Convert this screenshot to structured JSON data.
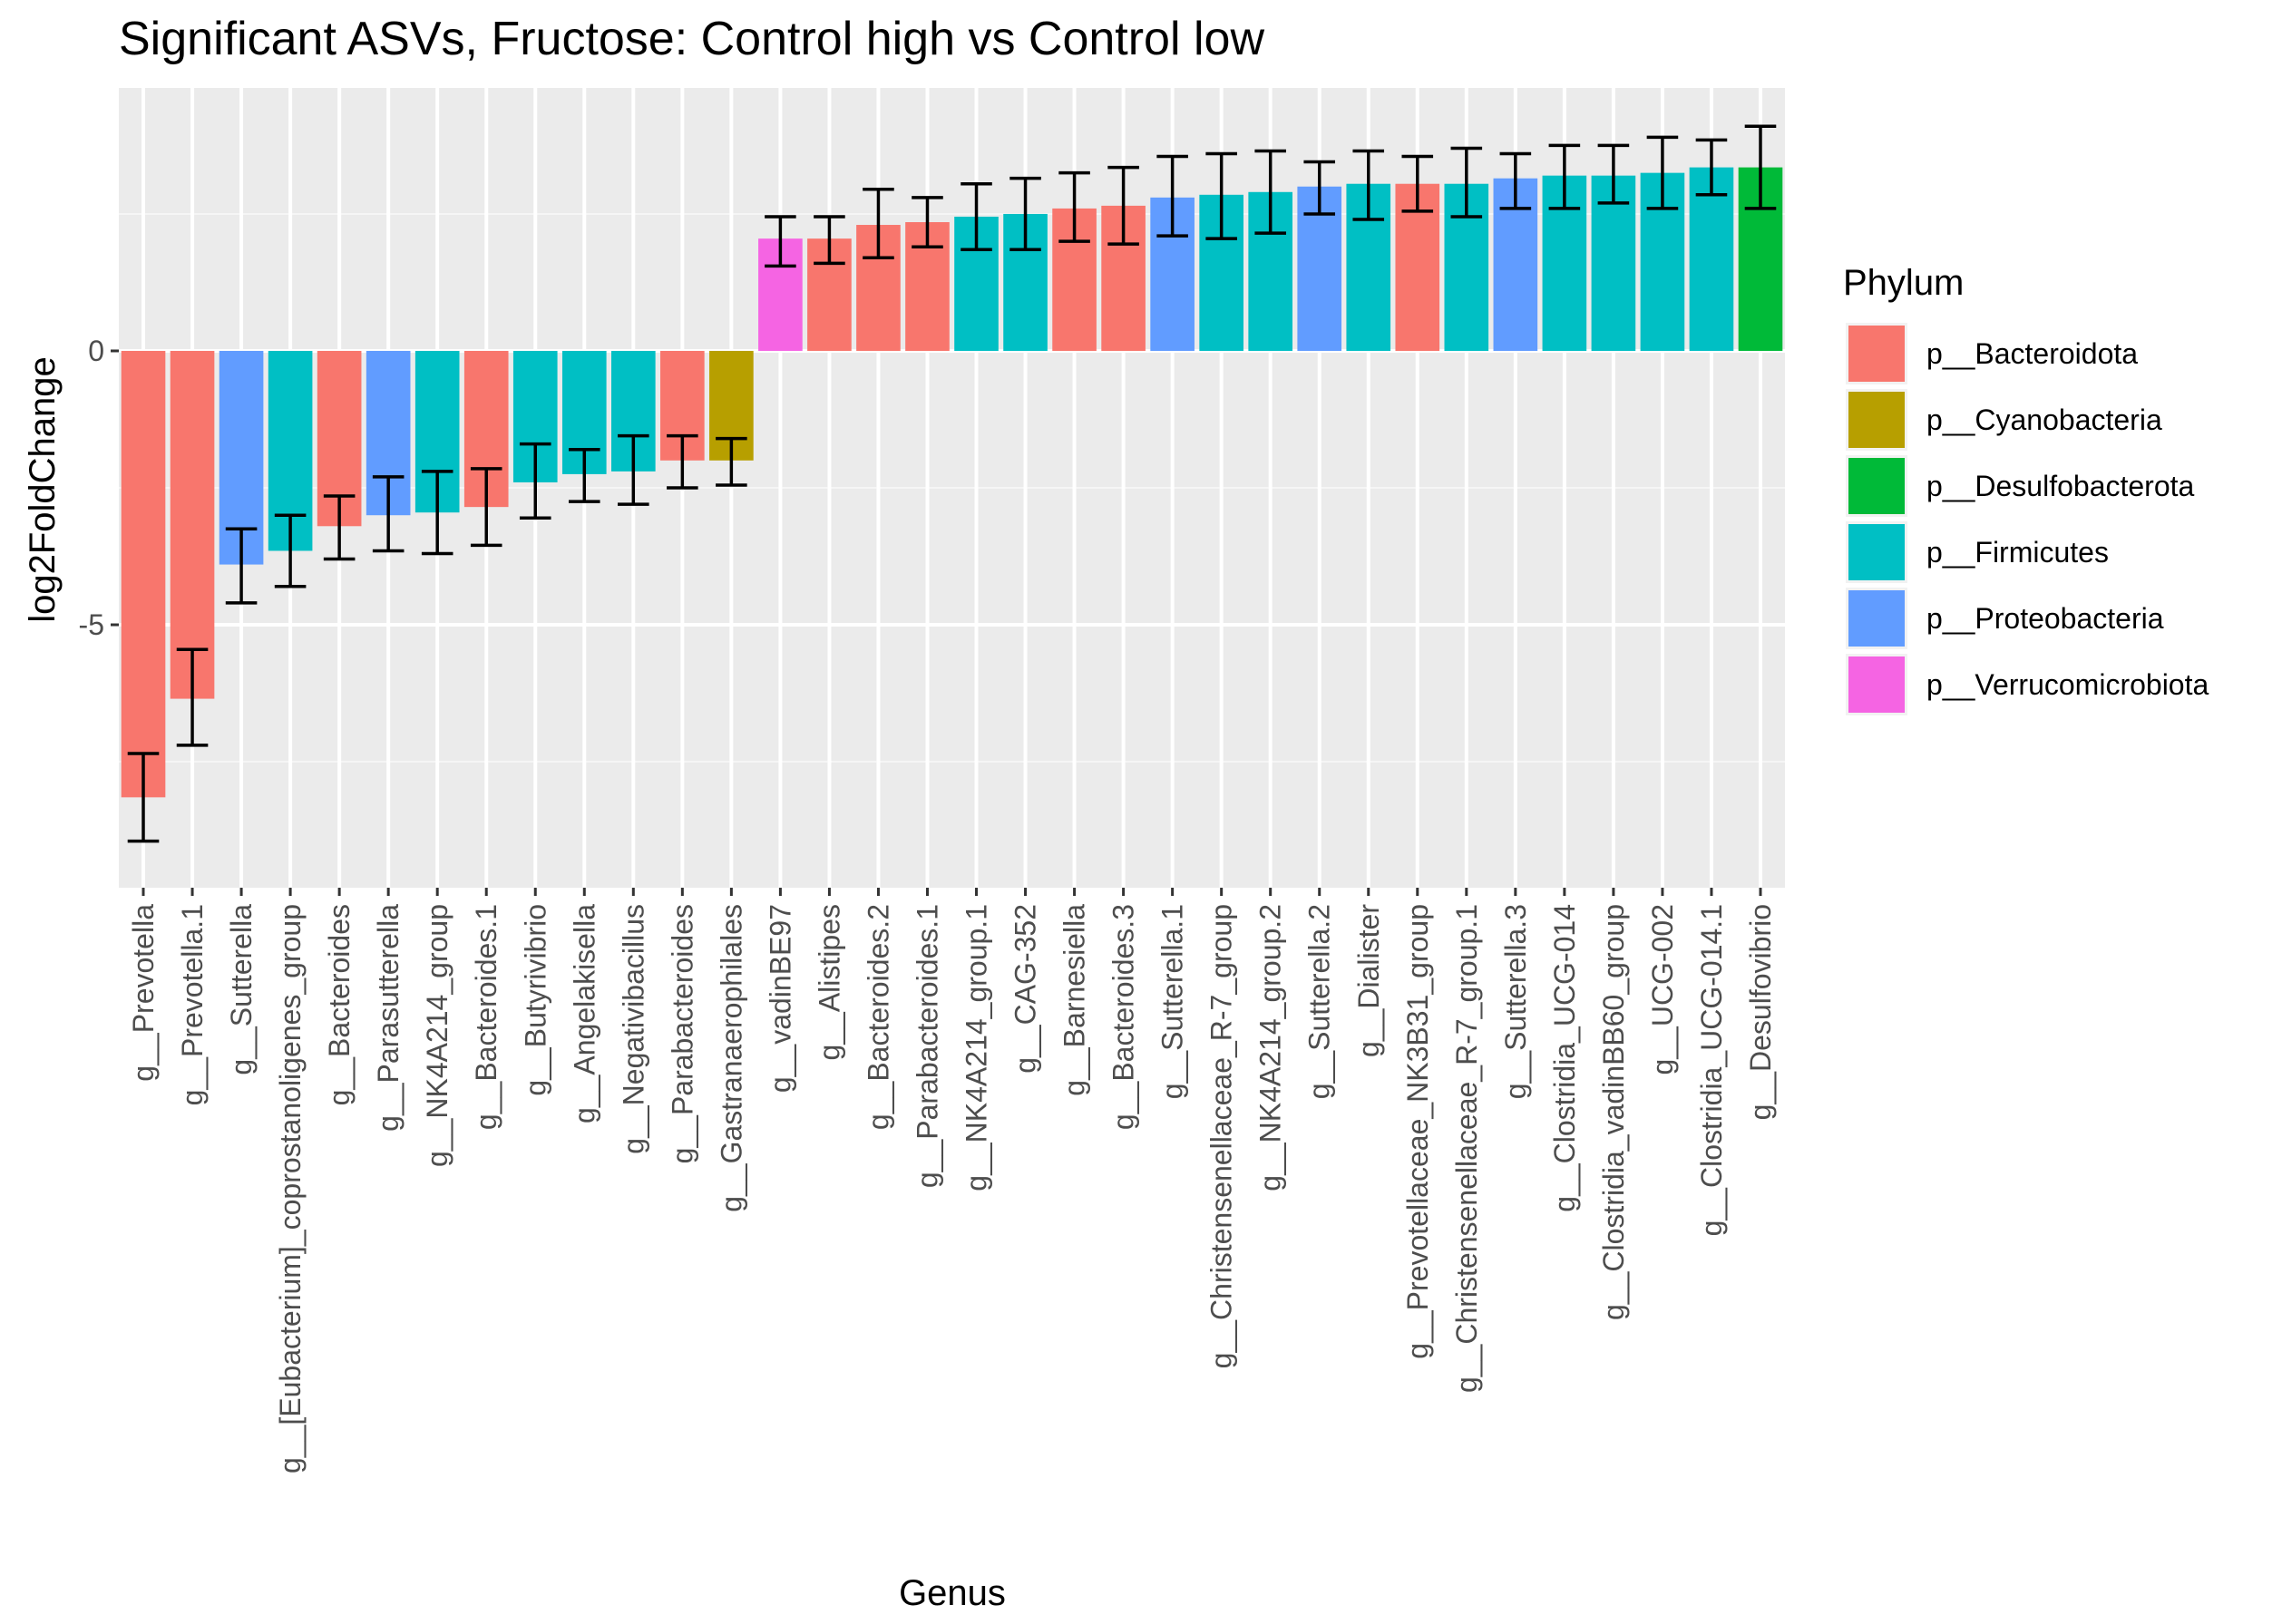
{
  "chart_data": {
    "type": "bar",
    "title": "Significant ASVs, Fructose: Control high vs Control low",
    "xlabel": "Genus",
    "ylabel": "log2FoldChange",
    "ylim": [
      -9.8,
      4.8
    ],
    "y_ticks": [
      {
        "value": 0,
        "label": "0"
      },
      {
        "value": -5,
        "label": "-5"
      }
    ],
    "y_minor": [
      2.5,
      -2.5,
      -7.5
    ],
    "grid": true,
    "legend": {
      "title": "Phylum",
      "position": "right"
    },
    "phyla": [
      {
        "name": "p__Bacteroidota",
        "color": "#F8766D"
      },
      {
        "name": "p__Cyanobacteria",
        "color": "#B79F00"
      },
      {
        "name": "p__Desulfobacterota",
        "color": "#00BA38"
      },
      {
        "name": "p__Firmicutes",
        "color": "#00BFC4"
      },
      {
        "name": "p__Proteobacteria",
        "color": "#619CFF"
      },
      {
        "name": "p__Verrucomicrobiota",
        "color": "#F564E3"
      }
    ],
    "bars": [
      {
        "genus": "g__Prevotella",
        "phylum": 0,
        "value": -8.15,
        "err_low": -8.95,
        "err_high": -7.35
      },
      {
        "genus": "g__Prevotella.1",
        "phylum": 0,
        "value": -6.35,
        "err_low": -7.2,
        "err_high": -5.45
      },
      {
        "genus": "g__Sutterella",
        "phylum": 4,
        "value": -3.9,
        "err_low": -4.6,
        "err_high": -3.25
      },
      {
        "genus": "g__[Eubacterium]_coprostanoligenes_group",
        "phylum": 3,
        "value": -3.65,
        "err_low": -4.3,
        "err_high": -3.0
      },
      {
        "genus": "g__Bacteroides",
        "phylum": 0,
        "value": -3.2,
        "err_low": -3.8,
        "err_high": -2.65
      },
      {
        "genus": "g__Parasutterella",
        "phylum": 4,
        "value": -3.0,
        "err_low": -3.65,
        "err_high": -2.3
      },
      {
        "genus": "g__NK4A214_group",
        "phylum": 3,
        "value": -2.95,
        "err_low": -3.7,
        "err_high": -2.2
      },
      {
        "genus": "g__Bacteroides.1",
        "phylum": 0,
        "value": -2.85,
        "err_low": -3.55,
        "err_high": -2.15
      },
      {
        "genus": "g__Butyrivibrio",
        "phylum": 3,
        "value": -2.4,
        "err_low": -3.05,
        "err_high": -1.7
      },
      {
        "genus": "g__Angelakisella",
        "phylum": 3,
        "value": -2.25,
        "err_low": -2.75,
        "err_high": -1.8
      },
      {
        "genus": "g__Negativibacillus",
        "phylum": 3,
        "value": -2.2,
        "err_low": -2.8,
        "err_high": -1.55
      },
      {
        "genus": "g__Parabacteroides",
        "phylum": 0,
        "value": -2.0,
        "err_low": -2.5,
        "err_high": -1.55
      },
      {
        "genus": "g__Gastranaerophilales",
        "phylum": 1,
        "value": -2.0,
        "err_low": -2.45,
        "err_high": -1.6
      },
      {
        "genus": "g__vadinBE97",
        "phylum": 5,
        "value": 2.05,
        "err_low": 1.55,
        "err_high": 2.45
      },
      {
        "genus": "g__Alistipes",
        "phylum": 0,
        "value": 2.05,
        "err_low": 1.6,
        "err_high": 2.45
      },
      {
        "genus": "g__Bacteroides.2",
        "phylum": 0,
        "value": 2.3,
        "err_low": 1.7,
        "err_high": 2.95
      },
      {
        "genus": "g__Parabacteroides.1",
        "phylum": 0,
        "value": 2.35,
        "err_low": 1.9,
        "err_high": 2.8
      },
      {
        "genus": "g__NK4A214_group.1",
        "phylum": 3,
        "value": 2.45,
        "err_low": 1.85,
        "err_high": 3.05
      },
      {
        "genus": "g__CAG-352",
        "phylum": 3,
        "value": 2.5,
        "err_low": 1.85,
        "err_high": 3.15
      },
      {
        "genus": "g__Barnesiella",
        "phylum": 0,
        "value": 2.6,
        "err_low": 2.0,
        "err_high": 3.25
      },
      {
        "genus": "g__Bacteroides.3",
        "phylum": 0,
        "value": 2.65,
        "err_low": 1.95,
        "err_high": 3.35
      },
      {
        "genus": "g__Sutterella.1",
        "phylum": 4,
        "value": 2.8,
        "err_low": 2.1,
        "err_high": 3.55
      },
      {
        "genus": "g__Christensenellaceae_R-7_group",
        "phylum": 3,
        "value": 2.85,
        "err_low": 2.05,
        "err_high": 3.6
      },
      {
        "genus": "g__NK4A214_group.2",
        "phylum": 3,
        "value": 2.9,
        "err_low": 2.15,
        "err_high": 3.65
      },
      {
        "genus": "g__Sutterella.2",
        "phylum": 4,
        "value": 3.0,
        "err_low": 2.5,
        "err_high": 3.45
      },
      {
        "genus": "g__Dialister",
        "phylum": 3,
        "value": 3.05,
        "err_low": 2.4,
        "err_high": 3.65
      },
      {
        "genus": "g__Prevotellaceae_NK3B31_group",
        "phylum": 0,
        "value": 3.05,
        "err_low": 2.55,
        "err_high": 3.55
      },
      {
        "genus": "g__Christensenellaceae_R-7_group.1",
        "phylum": 3,
        "value": 3.05,
        "err_low": 2.45,
        "err_high": 3.7
      },
      {
        "genus": "g__Sutterella.3",
        "phylum": 4,
        "value": 3.15,
        "err_low": 2.6,
        "err_high": 3.6
      },
      {
        "genus": "g__Clostridia_UCG-014",
        "phylum": 3,
        "value": 3.2,
        "err_low": 2.6,
        "err_high": 3.75
      },
      {
        "genus": "g__Clostridia_vadinBB60_group",
        "phylum": 3,
        "value": 3.2,
        "err_low": 2.7,
        "err_high": 3.75
      },
      {
        "genus": "g__UCG-002",
        "phylum": 3,
        "value": 3.25,
        "err_low": 2.6,
        "err_high": 3.9
      },
      {
        "genus": "g__Clostridia_UCG-014.1",
        "phylum": 3,
        "value": 3.35,
        "err_low": 2.85,
        "err_high": 3.85
      },
      {
        "genus": "g__Desulfovibrio",
        "phylum": 2,
        "value": 3.35,
        "err_low": 2.6,
        "err_high": 4.1
      }
    ]
  }
}
